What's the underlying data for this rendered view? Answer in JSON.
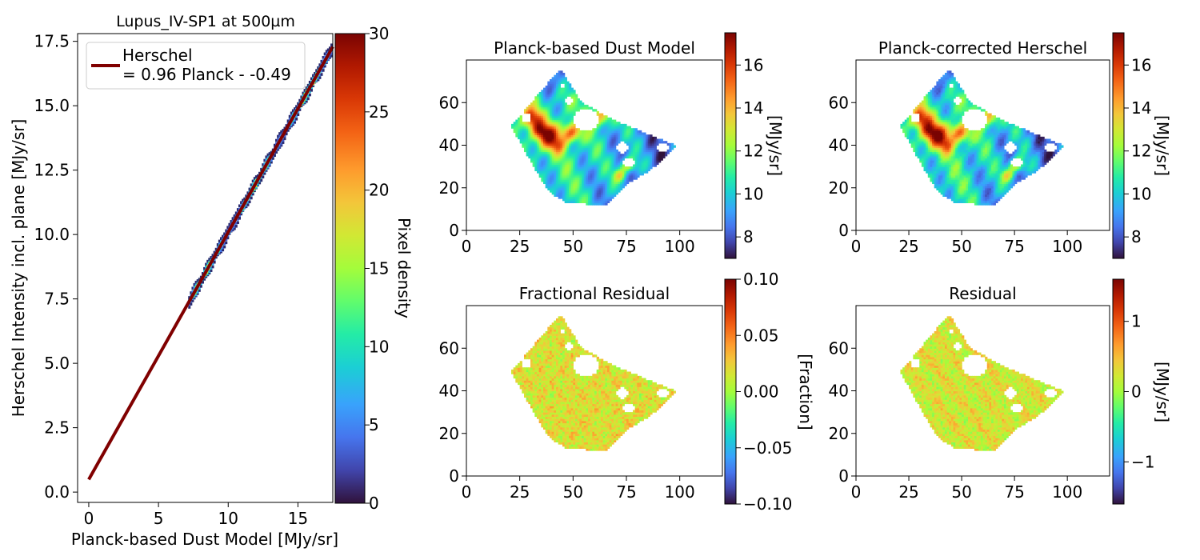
{
  "chart_data": [
    {
      "type": "heatmap",
      "title": "Lupus_IV-SP1 at 500µm",
      "xlabel": "Planck-based Dust Model [MJy/sr]",
      "ylabel": "Herschel Intensity incl. plane [MJy/sr]",
      "xlim": [
        -0.8,
        17.5
      ],
      "ylim": [
        -0.4,
        17.8
      ],
      "xticks": [
        "0",
        "5",
        "10",
        "15"
      ],
      "yticks": [
        "0.0",
        "2.5",
        "5.0",
        "7.5",
        "10.0",
        "12.5",
        "15.0",
        "17.5"
      ],
      "colorbar": {
        "label": "Pixel density",
        "range": [
          0,
          30
        ],
        "ticks": [
          "0",
          "5",
          "10",
          "15",
          "20",
          "25",
          "30"
        ],
        "colormap": "turbo"
      },
      "density_band": {
        "x_range": [
          7.2,
          17.4
        ],
        "description_of_trend": "narrow diagonal band of pixels along the fit line"
      },
      "fit_line": {
        "slope": 0.96,
        "intercept": 0.49,
        "x_range": [
          0,
          17.5
        ],
        "color": "#800000"
      },
      "legend": {
        "entry": "Herschel\n= 0.96 Planck - -0.49",
        "placement": "upper-left"
      },
      "grid": false
    },
    {
      "type": "heatmap",
      "title": "Planck-based Dust Model",
      "xlim": [
        0,
        120
      ],
      "ylim": [
        0,
        80
      ],
      "xticks": [
        "0",
        "25",
        "50",
        "75",
        "100"
      ],
      "yticks": [
        "0",
        "20",
        "40",
        "60"
      ],
      "colorbar": {
        "label": "[MJy/sr]",
        "range": [
          7,
          17.5
        ],
        "ticks": [
          "8",
          "10",
          "12",
          "14",
          "16"
        ],
        "colormap": "turbo"
      }
    },
    {
      "type": "heatmap",
      "title": "Planck-corrected Herschel",
      "xlim": [
        0,
        120
      ],
      "ylim": [
        0,
        80
      ],
      "xticks": [
        "0",
        "25",
        "50",
        "75",
        "100"
      ],
      "yticks": [
        "0",
        "20",
        "40",
        "60"
      ],
      "colorbar": {
        "label": "[MJy/sr]",
        "range": [
          7,
          17.5
        ],
        "ticks": [
          "8",
          "10",
          "12",
          "14",
          "16"
        ],
        "colormap": "turbo"
      }
    },
    {
      "type": "heatmap",
      "title": "Fractional Residual",
      "xlim": [
        0,
        120
      ],
      "ylim": [
        0,
        80
      ],
      "xticks": [
        "0",
        "25",
        "50",
        "75",
        "100"
      ],
      "yticks": [
        "0",
        "20",
        "40",
        "60"
      ],
      "colorbar": {
        "label": "[Fraction]",
        "range": [
          -0.1,
          0.1
        ],
        "ticks": [
          "−0.10",
          "−0.05",
          "0.00",
          "0.05",
          "0.10"
        ],
        "colormap": "turbo"
      }
    },
    {
      "type": "heatmap",
      "title": "Residual",
      "xlim": [
        0,
        120
      ],
      "ylim": [
        0,
        80
      ],
      "xticks": [
        "0",
        "25",
        "50",
        "75",
        "100"
      ],
      "yticks": [
        "0",
        "20",
        "40",
        "60"
      ],
      "colorbar": {
        "label": "[MJy/sr]",
        "range": [
          -1.6,
          1.6
        ],
        "ticks": [
          "−1",
          "0",
          "1"
        ],
        "colormap": "turbo"
      }
    }
  ],
  "map_region": {
    "polygon": [
      [
        21,
        49
      ],
      [
        44,
        76
      ],
      [
        54,
        60
      ],
      [
        71,
        51
      ],
      [
        98,
        40
      ],
      [
        92,
        33
      ],
      [
        84,
        27
      ],
      [
        77,
        23
      ],
      [
        70,
        16
      ],
      [
        65,
        12
      ],
      [
        47,
        13
      ],
      [
        39,
        18
      ],
      [
        32,
        29
      ]
    ],
    "holes": [
      {
        "shape": "circle",
        "center": [
          56,
          52
        ],
        "r": 6
      },
      {
        "shape": "circle",
        "center": [
          73,
          39
        ],
        "r": 3
      },
      {
        "shape": "circle",
        "center": [
          76,
          32
        ],
        "r": 2.6
      },
      {
        "shape": "circle",
        "center": [
          92,
          39
        ],
        "r": 2.6
      },
      {
        "shape": "circle",
        "center": [
          28,
          53
        ],
        "r": 2.4
      },
      {
        "shape": "circle",
        "center": [
          48,
          61
        ],
        "r": 2.2
      },
      {
        "shape": "rect",
        "center": [
          45,
          68
        ],
        "size": [
          2,
          2
        ]
      }
    ]
  }
}
